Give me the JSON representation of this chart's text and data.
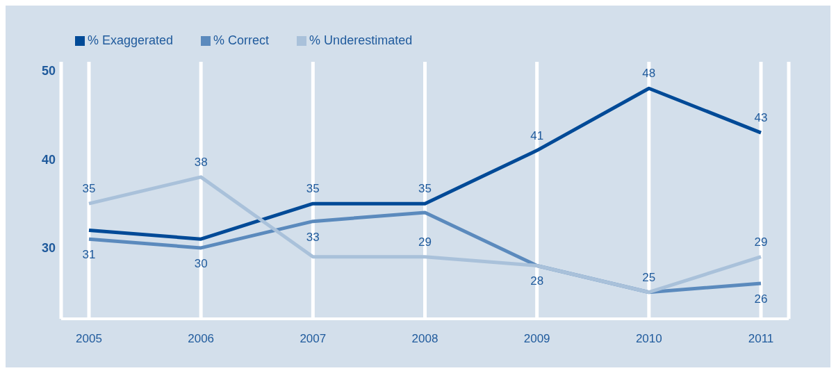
{
  "chart_data": {
    "type": "line",
    "categories": [
      "2005",
      "2006",
      "2007",
      "2008",
      "2009",
      "2010",
      "2011"
    ],
    "series": [
      {
        "name": "% Exaggerated",
        "color": "#004a97",
        "values": [
          32,
          31,
          35,
          35,
          41,
          48,
          43
        ],
        "value_labels": [
          null,
          null,
          "35",
          "35",
          "41",
          "48",
          "43"
        ]
      },
      {
        "name": "% Correct",
        "color": "#5b8abd",
        "values": [
          31,
          30,
          33,
          34,
          28,
          25,
          26
        ],
        "value_labels": [
          "31",
          "30",
          "33",
          null,
          "28",
          null,
          "26"
        ]
      },
      {
        "name": "% Underestimated",
        "color": "#a9c1da",
        "values": [
          35,
          38,
          29,
          29,
          28,
          25,
          29
        ],
        "value_labels": [
          "35",
          "38",
          null,
          "29",
          null,
          "25",
          "29"
        ]
      }
    ],
    "ylim": [
      22,
      51
    ],
    "yticks": [
      30,
      40,
      50
    ],
    "grid": "x",
    "legend": "top left",
    "marker": "none",
    "line_style": "solid"
  }
}
